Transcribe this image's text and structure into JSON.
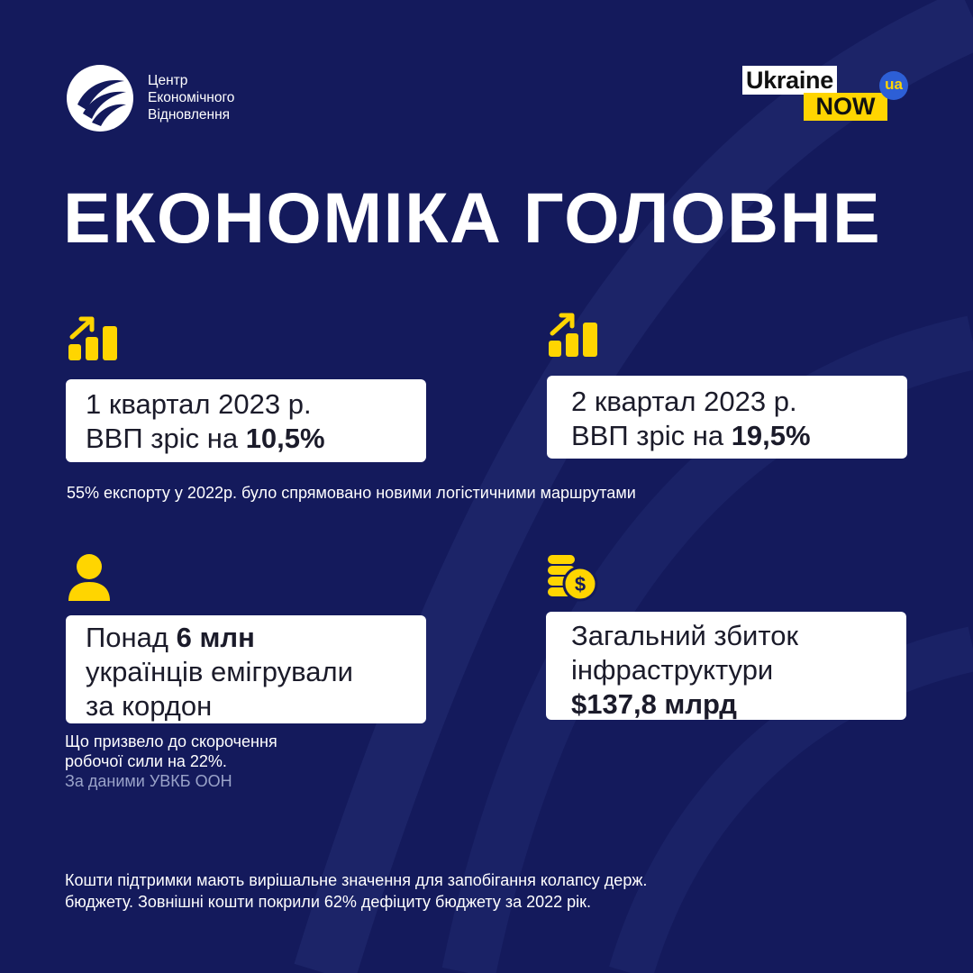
{
  "logo": {
    "lines": [
      "Центр",
      "Економічного",
      "Відновлення"
    ]
  },
  "brand": {
    "ukraine": "Ukraine",
    "now": "NOW",
    "ua": "ua"
  },
  "title": "ЕКОНОМІКА ГОЛОВНЕ",
  "cards": {
    "q1": {
      "line1": "1 квартал  2023 р.",
      "line2_prefix": "ВВП зріс на ",
      "line2_value": "10,5%"
    },
    "q2": {
      "line1": "2 квартал  2023 р.",
      "line2_prefix": "ВВП зріс на ",
      "line2_value": "19,5%"
    },
    "emigration": {
      "line1_prefix": "Понад  ",
      "line1_value": "6 млн",
      "line2": "українців емігрували",
      "line3": "за кордон"
    },
    "damage": {
      "line1": "Загальний збиток",
      "line2": "інфраструктури",
      "line3_value": "$137,8 млрд"
    }
  },
  "notes": {
    "export": "55% експорту у 2022р. було спрямовано новими логістичними маршрутами",
    "workforce_line1": "Що призвело до скорочення",
    "workforce_line2": "робочої сили на 22%.",
    "source": "За даними УВКБ ООН",
    "footer_line1": "Кошти підтримки мають вирішальне значення для запобігання колапсу держ.",
    "footer_line2": "бюджету. Зовнішні кошти покрили 62% дефіциту бюджету за 2022 рік."
  },
  "icons": {
    "growth": "bar-chart-growth-icon",
    "person": "person-icon",
    "coins": "coins-dollar-icon"
  },
  "colors": {
    "background": "#141a5c",
    "accent_yellow": "#ffd500",
    "card": "#ffffff",
    "text_dark": "#1b1b2a",
    "source_text": "#9aa3c9"
  }
}
